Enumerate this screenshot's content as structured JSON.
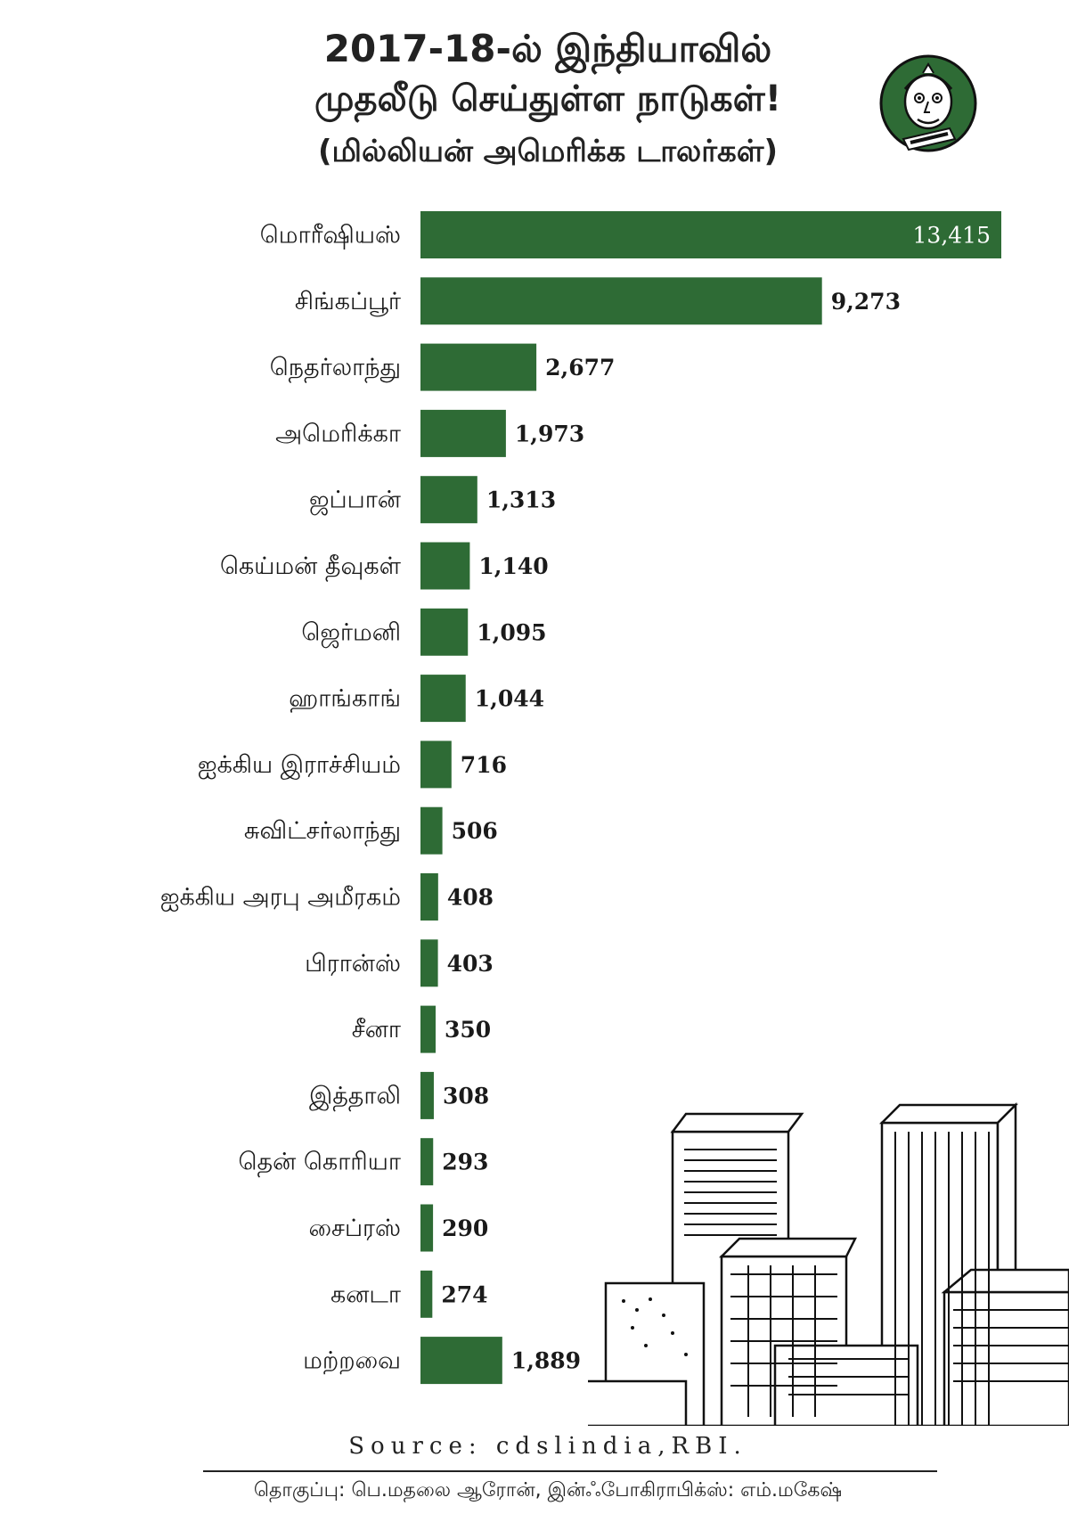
{
  "chart_data": {
    "type": "bar",
    "orientation": "horizontal",
    "title_lines": [
      "2017-18-ல் இந்தியாவில்",
      "முதலீடு செய்துள்ள நாடுகள்!",
      "(மில்லியன் அமெரிக்க டாலர்கள்)"
    ],
    "categories": [
      "மொரீஷியஸ்",
      "சிங்கப்பூர்",
      "நெதர்லாந்து",
      "அமெரிக்கா",
      "ஜப்பான்",
      "கெய்மன் தீவுகள்",
      "ஜெர்மனி",
      "ஹாங்காங்",
      "ஐக்கிய இராச்சியம்",
      "சுவிட்சர்லாந்து",
      "ஐக்கிய அரபு அமீரகம்",
      "பிரான்ஸ்",
      "சீனா",
      "இத்தாலி",
      "தென் கொரியா",
      "சைப்ரஸ்",
      "கனடா",
      "மற்றவை"
    ],
    "values": [
      13415,
      9273,
      2677,
      1973,
      1313,
      1140,
      1095,
      1044,
      716,
      506,
      408,
      403,
      350,
      308,
      293,
      290,
      274,
      1889
    ],
    "value_labels": [
      "13,415",
      "9,273",
      "2,677",
      "1,973",
      "1,313",
      "1,140",
      "1,095",
      "1,044",
      "716",
      "506",
      "408",
      "403",
      "350",
      "308",
      "293",
      "290",
      "274",
      "1,889"
    ],
    "bar_color": "#2e6b35",
    "grid": false,
    "legend": "none"
  },
  "footer": {
    "source": "Source: cdslindia,RBI.",
    "credits": "தொகுப்பு: பெ.மதலை ஆரோன், இன்ஃபோகிராபிக்ஸ்: எம்.மகேஷ்"
  },
  "decor": {
    "mascot_icon": "cartoon-mascot-icon",
    "city_icon": "city-skyline-icon",
    "accent_color": "#2e6b35"
  }
}
